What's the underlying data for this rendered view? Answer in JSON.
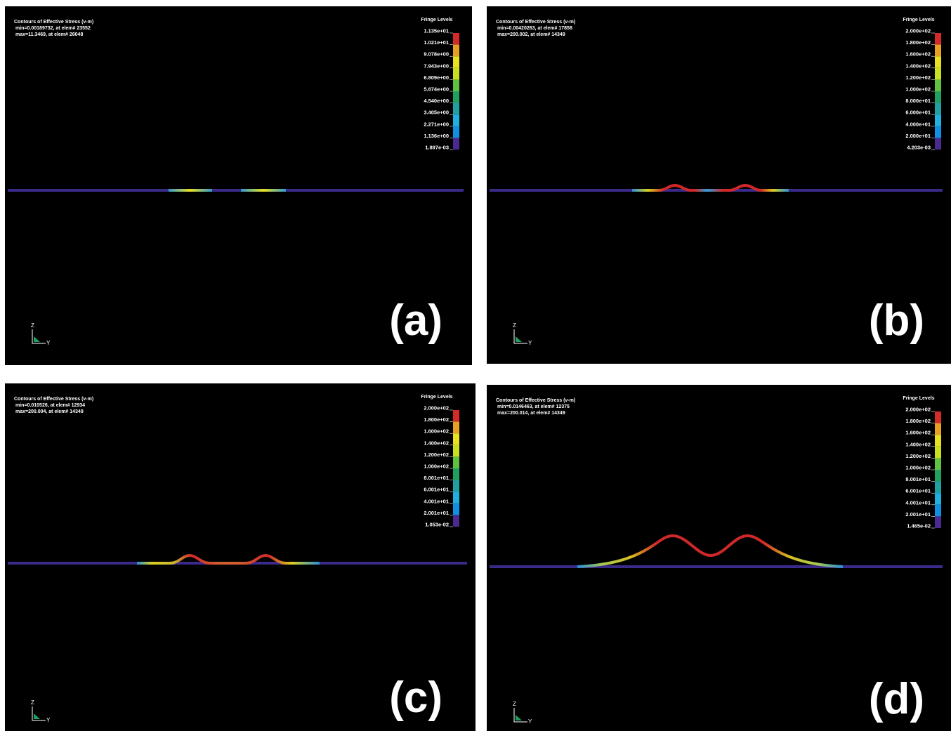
{
  "panels": [
    {
      "header": [
        "Contours of Effective Stress (v-m)",
        "min=0.00189732, at elem# 23552",
        "max=11.3469, at elem# 26048"
      ],
      "fringe_title": "Fringe Levels",
      "levels": [
        "1.135e+01",
        "1.021e+01",
        "9.078e+00",
        "7.943e+00",
        "6.809e+00",
        "5.674e+00",
        "4.540e+00",
        "3.405e+00",
        "2.271e+00",
        "1.136e+00",
        "1.897e-03"
      ],
      "label": "(a)",
      "axis_z": "Z",
      "axis_y": "Y"
    },
    {
      "header": [
        "Contours of Effective Stress (v-m)",
        "min=0.00420263, at elem# 17858",
        "max=200.002, at elem# 14349"
      ],
      "fringe_title": "Fringe Levels",
      "levels": [
        "2.000e+02",
        "1.800e+02",
        "1.600e+02",
        "1.400e+02",
        "1.200e+02",
        "1.000e+02",
        "8.000e+01",
        "6.000e+01",
        "4.000e+01",
        "2.000e+01",
        "4.203e-03"
      ],
      "label": "(b)",
      "axis_z": "Z",
      "axis_y": "Y"
    },
    {
      "header": [
        "Contours of Effective Stress (v-m)",
        "min=0.010526, at elem# 12934",
        "max=200.004, at elem# 14349"
      ],
      "fringe_title": "Fringe Levels",
      "levels": [
        "2.000e+02",
        "1.800e+02",
        "1.600e+02",
        "1.400e+02",
        "1.200e+02",
        "1.000e+02",
        "8.001e+01",
        "6.001e+01",
        "4.001e+01",
        "2.001e+01",
        "1.053e-02"
      ],
      "label": "(c)",
      "axis_z": "Z",
      "axis_y": "Y"
    },
    {
      "header": [
        "Contours of Effective Stress (v-m)",
        "min=0.0146463, at elem# 12375",
        "max=200.014, at elem# 14349"
      ],
      "fringe_title": "Fringe Levels",
      "levels": [
        "2.000e+02",
        "1.800e+02",
        "1.600e+02",
        "1.400e+02",
        "1.200e+02",
        "1.000e+02",
        "8.001e+01",
        "6.001e+01",
        "4.001e+01",
        "2.001e+01",
        "1.465e-02"
      ],
      "label": "(d)",
      "axis_z": "Z",
      "axis_y": "Y"
    }
  ]
}
